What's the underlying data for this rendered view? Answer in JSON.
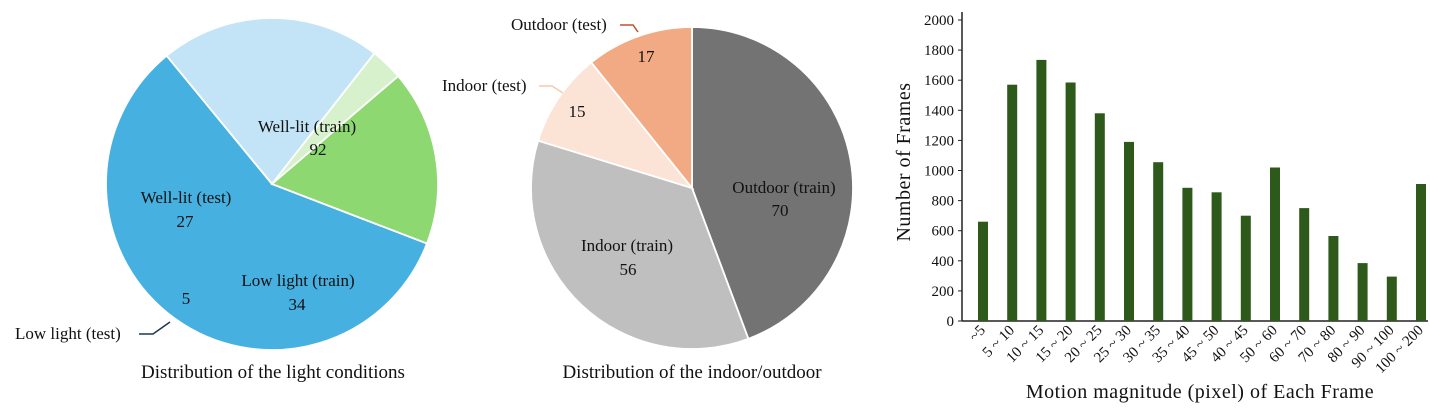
{
  "chart_data": [
    {
      "type": "pie",
      "caption": "Distribution of the light conditions",
      "slices": [
        {
          "label": "Well-lit (train)",
          "value": 92,
          "color": "#46b0e1"
        },
        {
          "label": "Low light (train)",
          "value": 34,
          "color": "#c3e4f6"
        },
        {
          "label": "Low light (test)",
          "value": 5,
          "color": "#d6f1cc"
        },
        {
          "label": "Well-lit (test)",
          "value": 27,
          "color": "#8dd870"
        }
      ]
    },
    {
      "type": "pie",
      "caption": "Distribution of the indoor/outdoor",
      "slices": [
        {
          "label": "Outdoor (train)",
          "value": 70,
          "color": "#737373"
        },
        {
          "label": "Indoor (train)",
          "value": 56,
          "color": "#bfbfbf"
        },
        {
          "label": "Indoor (test)",
          "value": 15,
          "color": "#fbe3d6"
        },
        {
          "label": "Outdoor (test)",
          "value": 17,
          "color": "#f2aa84"
        }
      ]
    },
    {
      "type": "bar",
      "categories": [
        "~5",
        "5 ~ 10",
        "10 ~ 15",
        "15 ~ 20",
        "20 ~ 25",
        "25 ~ 30",
        "30 ~ 35",
        "35 ~ 40",
        "45 ~ 50",
        "40 ~ 45",
        "50 ~ 60",
        "60 ~ 70",
        "70 ~ 80",
        "80 ~ 90",
        "90 ~ 100",
        "100 ~ 200"
      ],
      "values": [
        660,
        1570,
        1735,
        1585,
        1380,
        1190,
        1055,
        885,
        855,
        700,
        1020,
        750,
        565,
        385,
        295,
        910
      ],
      "xlabel": "Motion magnitude (pixel) of Each Frame",
      "ylabel": "Number of Frames",
      "ylim": [
        0,
        2000
      ],
      "yticks": [
        "0",
        "200",
        "400",
        "600",
        "800",
        "1000",
        "1200",
        "1400",
        "1600",
        "1800",
        "2000"
      ],
      "bar_color": "#2d5a1b"
    }
  ]
}
